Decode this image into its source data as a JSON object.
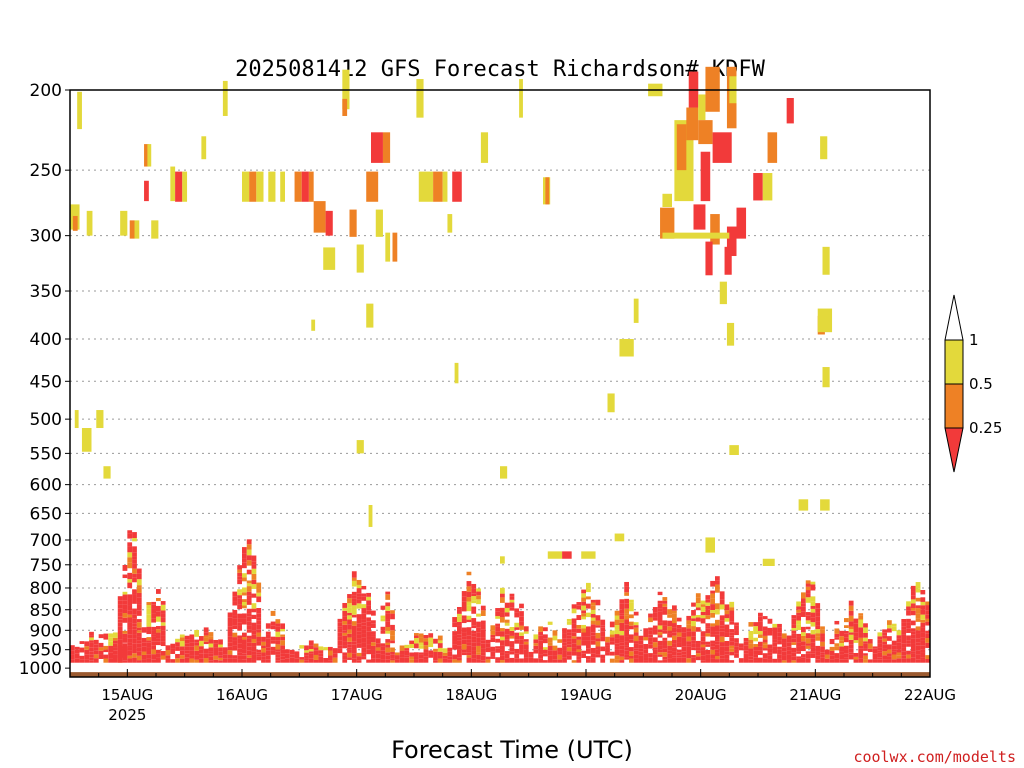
{
  "chart_data": {
    "type": "heatmap",
    "title": "2025081412 GFS Forecast Richardson# KDFW",
    "xlabel": "Forecast Time (UTC)",
    "ylabel": "",
    "y_levels": [
      200,
      250,
      300,
      350,
      400,
      450,
      500,
      550,
      600,
      650,
      700,
      750,
      800,
      850,
      900,
      950,
      1000
    ],
    "y_scale": "log-pressure",
    "y_range": [
      1025,
      200
    ],
    "x_range_hours": [
      0,
      180
    ],
    "x_ticks": [
      {
        "label": "15AUG",
        "hour": 12
      },
      {
        "label": "16AUG",
        "hour": 36
      },
      {
        "label": "17AUG",
        "hour": 60
      },
      {
        "label": "18AUG",
        "hour": 84
      },
      {
        "label": "19AUG",
        "hour": 108
      },
      {
        "label": "20AUG",
        "hour": 132
      },
      {
        "label": "21AUG",
        "hour": 156
      },
      {
        "label": "22AUG",
        "hour": 180
      }
    ],
    "x_sublabel": "2025",
    "grid": "dotted horizontal at pressure levels",
    "legend": {
      "placement": "right",
      "labels": [
        "1",
        "0.5",
        "0.25"
      ],
      "bins": [
        {
          "range": [
            0.5,
            1.0
          ],
          "color": "#e3d93b"
        },
        {
          "range": [
            0.25,
            0.5
          ],
          "color": "#ee8125"
        },
        {
          "range": [
            0,
            0.25
          ],
          "color": "#f23a3a"
        }
      ]
    },
    "ground_color": "#9a5a30",
    "colors": {
      "low": "#f23a3a",
      "mid": "#ee8125",
      "high": "#e3d93b"
    },
    "cells": [
      {
        "t": 1.5,
        "p": 212,
        "dt": 1,
        "dp": 22,
        "c": "high"
      },
      {
        "t": 0,
        "p": 285,
        "dt": 2,
        "dp": 20,
        "c": "high"
      },
      {
        "t": 0.6,
        "p": 290,
        "dt": 1,
        "dp": 12,
        "c": "mid"
      },
      {
        "t": 3.5,
        "p": 290,
        "dt": 1.2,
        "dp": 20,
        "c": "high"
      },
      {
        "t": 10.5,
        "p": 290,
        "dt": 1.5,
        "dp": 20,
        "c": "high"
      },
      {
        "t": 12.5,
        "p": 295,
        "dt": 1,
        "dp": 15,
        "c": "mid"
      },
      {
        "t": 13.5,
        "p": 295,
        "dt": 1,
        "dp": 15,
        "c": "high"
      },
      {
        "t": 15.5,
        "p": 240,
        "dt": 1,
        "dp": 15,
        "c": "mid"
      },
      {
        "t": 15.5,
        "p": 265,
        "dt": 1,
        "dp": 15,
        "c": "low"
      },
      {
        "t": 16.2,
        "p": 240,
        "dt": 0.8,
        "dp": 15,
        "c": "high"
      },
      {
        "t": 17,
        "p": 295,
        "dt": 1.5,
        "dp": 15,
        "c": "high"
      },
      {
        "t": 21,
        "p": 260,
        "dt": 1,
        "dp": 25,
        "c": "high"
      },
      {
        "t": 22,
        "p": 262,
        "dt": 1.5,
        "dp": 22,
        "c": "low"
      },
      {
        "t": 23.5,
        "p": 262,
        "dt": 1,
        "dp": 22,
        "c": "high"
      },
      {
        "t": 27.5,
        "p": 235,
        "dt": 1,
        "dp": 15,
        "c": "high"
      },
      {
        "t": 32,
        "p": 205,
        "dt": 1,
        "dp": 20,
        "c": "high"
      },
      {
        "t": 36,
        "p": 262,
        "dt": 1.5,
        "dp": 22,
        "c": "high"
      },
      {
        "t": 37.5,
        "p": 262,
        "dt": 1.5,
        "dp": 22,
        "c": "mid"
      },
      {
        "t": 39,
        "p": 262,
        "dt": 1.5,
        "dp": 22,
        "c": "high"
      },
      {
        "t": 41.5,
        "p": 262,
        "dt": 1.5,
        "dp": 22,
        "c": "high"
      },
      {
        "t": 44,
        "p": 262,
        "dt": 1,
        "dp": 22,
        "c": "high"
      },
      {
        "t": 47,
        "p": 262,
        "dt": 1.5,
        "dp": 22,
        "c": "mid"
      },
      {
        "t": 48.5,
        "p": 262,
        "dt": 1.5,
        "dp": 22,
        "c": "low"
      },
      {
        "t": 50,
        "p": 262,
        "dt": 1,
        "dp": 22,
        "c": "mid"
      },
      {
        "t": 51,
        "p": 285,
        "dt": 2.5,
        "dp": 25,
        "c": "mid"
      },
      {
        "t": 53.5,
        "p": 290,
        "dt": 1.5,
        "dp": 20,
        "c": "low"
      },
      {
        "t": 53,
        "p": 320,
        "dt": 2.5,
        "dp": 20,
        "c": "high"
      },
      {
        "t": 57,
        "p": 200,
        "dt": 1.5,
        "dp": 22,
        "c": "high"
      },
      {
        "t": 57,
        "p": 210,
        "dt": 1,
        "dp": 10,
        "c": "mid"
      },
      {
        "t": 58.5,
        "p": 290,
        "dt": 1.5,
        "dp": 22,
        "c": "mid"
      },
      {
        "t": 60,
        "p": 320,
        "dt": 1.5,
        "dp": 25,
        "c": "high"
      },
      {
        "t": 62,
        "p": 262,
        "dt": 2.5,
        "dp": 22,
        "c": "mid"
      },
      {
        "t": 63,
        "p": 235,
        "dt": 2.5,
        "dp": 20,
        "c": "low"
      },
      {
        "t": 65.5,
        "p": 235,
        "dt": 1.5,
        "dp": 20,
        "c": "mid"
      },
      {
        "t": 64,
        "p": 290,
        "dt": 1.5,
        "dp": 22,
        "c": "high"
      },
      {
        "t": 66,
        "p": 310,
        "dt": 1,
        "dp": 25,
        "c": "high"
      },
      {
        "t": 67.5,
        "p": 310,
        "dt": 1,
        "dp": 25,
        "c": "mid"
      },
      {
        "t": 72.5,
        "p": 205,
        "dt": 1.5,
        "dp": 22,
        "c": "high"
      },
      {
        "t": 73,
        "p": 262,
        "dt": 3,
        "dp": 22,
        "c": "high"
      },
      {
        "t": 76,
        "p": 262,
        "dt": 2,
        "dp": 22,
        "c": "mid"
      },
      {
        "t": 78,
        "p": 262,
        "dt": 1,
        "dp": 22,
        "c": "high"
      },
      {
        "t": 80,
        "p": 262,
        "dt": 2,
        "dp": 22,
        "c": "low"
      },
      {
        "t": 79,
        "p": 290,
        "dt": 1,
        "dp": 15,
        "c": "high"
      },
      {
        "t": 86,
        "p": 235,
        "dt": 1.5,
        "dp": 20,
        "c": "high"
      },
      {
        "t": 94,
        "p": 205,
        "dt": 0.8,
        "dp": 22,
        "c": "high"
      },
      {
        "t": 99,
        "p": 265,
        "dt": 1.5,
        "dp": 20,
        "c": "high"
      },
      {
        "t": 99.5,
        "p": 265,
        "dt": 0.8,
        "dp": 20,
        "c": "mid"
      },
      {
        "t": 121,
        "p": 200,
        "dt": 3,
        "dp": 7,
        "c": "high"
      },
      {
        "t": 124,
        "p": 272,
        "dt": 2,
        "dp": 10,
        "c": "high"
      },
      {
        "t": 123.5,
        "p": 290,
        "dt": 3,
        "dp": 25,
        "c": "mid"
      },
      {
        "t": 126.5,
        "p": 245,
        "dt": 4,
        "dp": 55,
        "c": "high"
      },
      {
        "t": 127,
        "p": 235,
        "dt": 2,
        "dp": 30,
        "c": "mid"
      },
      {
        "t": 129,
        "p": 220,
        "dt": 2.5,
        "dp": 20,
        "c": "mid"
      },
      {
        "t": 129.5,
        "p": 200,
        "dt": 2,
        "dp": 20,
        "c": "low"
      },
      {
        "t": 131.5,
        "p": 210,
        "dt": 1.5,
        "dp": 15,
        "c": "high"
      },
      {
        "t": 131.5,
        "p": 225,
        "dt": 3,
        "dp": 15,
        "c": "mid"
      },
      {
        "t": 133,
        "p": 200,
        "dt": 3,
        "dp": 25,
        "c": "mid"
      },
      {
        "t": 130.5,
        "p": 285,
        "dt": 2.5,
        "dp": 20,
        "c": "low"
      },
      {
        "t": 132,
        "p": 255,
        "dt": 2,
        "dp": 35,
        "c": "low"
      },
      {
        "t": 134.5,
        "p": 235,
        "dt": 4,
        "dp": 20,
        "c": "low"
      },
      {
        "t": 134,
        "p": 295,
        "dt": 2,
        "dp": 25,
        "c": "mid"
      },
      {
        "t": 137.5,
        "p": 205,
        "dt": 2,
        "dp": 35,
        "c": "mid"
      },
      {
        "t": 138,
        "p": 200,
        "dt": 1.5,
        "dp": 15,
        "c": "high"
      },
      {
        "t": 137.5,
        "p": 305,
        "dt": 2,
        "dp": 25,
        "c": "low"
      },
      {
        "t": 139.5,
        "p": 290,
        "dt": 2,
        "dp": 25,
        "c": "low"
      },
      {
        "t": 143,
        "p": 262,
        "dt": 2,
        "dp": 20,
        "c": "low"
      },
      {
        "t": 145,
        "p": 262,
        "dt": 2,
        "dp": 20,
        "c": "high"
      },
      {
        "t": 146,
        "p": 235,
        "dt": 2,
        "dp": 20,
        "c": "mid"
      },
      {
        "t": 150,
        "p": 212,
        "dt": 1.5,
        "dp": 15,
        "c": "low"
      },
      {
        "t": 157,
        "p": 235,
        "dt": 1.5,
        "dp": 15,
        "c": "high"
      },
      {
        "t": 124,
        "p": 300,
        "dt": 14,
        "dp": 5,
        "c": "high"
      },
      {
        "t": 133,
        "p": 320,
        "dt": 1.5,
        "dp": 30,
        "c": "low"
      },
      {
        "t": 137,
        "p": 322,
        "dt": 1.5,
        "dp": 25,
        "c": "low"
      },
      {
        "t": 136,
        "p": 352,
        "dt": 1.5,
        "dp": 22,
        "c": "high"
      },
      {
        "t": 137.5,
        "p": 395,
        "dt": 1.5,
        "dp": 25,
        "c": "high"
      },
      {
        "t": 157.5,
        "p": 322,
        "dt": 1.5,
        "dp": 25,
        "c": "high"
      },
      {
        "t": 156.5,
        "p": 385,
        "dt": 1.5,
        "dp": 20,
        "c": "mid"
      },
      {
        "t": 156.5,
        "p": 380,
        "dt": 3,
        "dp": 25,
        "c": "high"
      },
      {
        "t": 157.5,
        "p": 445,
        "dt": 1.5,
        "dp": 25,
        "c": "high"
      },
      {
        "t": 115,
        "p": 410,
        "dt": 3,
        "dp": 20,
        "c": "high"
      },
      {
        "t": 118,
        "p": 370,
        "dt": 1,
        "dp": 25,
        "c": "high"
      },
      {
        "t": 112.5,
        "p": 478,
        "dt": 1.5,
        "dp": 25,
        "c": "high"
      },
      {
        "t": 62,
        "p": 375,
        "dt": 1.5,
        "dp": 25,
        "c": "high"
      },
      {
        "t": 50.5,
        "p": 385,
        "dt": 0.8,
        "dp": 12,
        "c": "high"
      },
      {
        "t": 80.5,
        "p": 440,
        "dt": 0.8,
        "dp": 25,
        "c": "high"
      },
      {
        "t": 2.5,
        "p": 530,
        "dt": 2,
        "dp": 35,
        "c": "high"
      },
      {
        "t": 5.5,
        "p": 500,
        "dt": 1.5,
        "dp": 25,
        "c": "high"
      },
      {
        "t": 1,
        "p": 500,
        "dt": 0.8,
        "dp": 25,
        "c": "high"
      },
      {
        "t": 7,
        "p": 580,
        "dt": 1.5,
        "dp": 20,
        "c": "high"
      },
      {
        "t": 60,
        "p": 540,
        "dt": 1.5,
        "dp": 20,
        "c": "high"
      },
      {
        "t": 90,
        "p": 580,
        "dt": 1.5,
        "dp": 20,
        "c": "high"
      },
      {
        "t": 138,
        "p": 545,
        "dt": 2,
        "dp": 15,
        "c": "high"
      },
      {
        "t": 157,
        "p": 635,
        "dt": 2,
        "dp": 20,
        "c": "high"
      },
      {
        "t": 152.5,
        "p": 635,
        "dt": 2,
        "dp": 20,
        "c": "high"
      },
      {
        "t": 133,
        "p": 710,
        "dt": 2,
        "dp": 30,
        "c": "high"
      },
      {
        "t": 145,
        "p": 745,
        "dt": 2.5,
        "dp": 15,
        "c": "high"
      },
      {
        "t": 62.5,
        "p": 655,
        "dt": 0.8,
        "dp": 40,
        "c": "high"
      },
      {
        "t": 107,
        "p": 730,
        "dt": 3,
        "dp": 15,
        "c": "high"
      },
      {
        "t": 100,
        "p": 730,
        "dt": 3,
        "dp": 15,
        "c": "high"
      },
      {
        "t": 103,
        "p": 730,
        "dt": 2,
        "dp": 15,
        "c": "low"
      },
      {
        "t": 114,
        "p": 695,
        "dt": 2,
        "dp": 15,
        "c": "high"
      },
      {
        "t": 90,
        "p": 740,
        "dt": 1,
        "dp": 15,
        "c": "high"
      }
    ],
    "low_columns": [
      {
        "t0": 0,
        "t1": 12,
        "top": 900,
        "dense_top": 945
      },
      {
        "t0": 10,
        "t1": 15,
        "top": 650,
        "dense_top": 820
      },
      {
        "t0": 15,
        "t1": 20,
        "top": 770,
        "dense_top": 900
      },
      {
        "t0": 20,
        "t1": 33,
        "top": 900,
        "dense_top": 950
      },
      {
        "t0": 33,
        "t1": 40,
        "top": 700,
        "dense_top": 860
      },
      {
        "t0": 40,
        "t1": 45,
        "top": 840,
        "dense_top": 920
      },
      {
        "t0": 45,
        "t1": 56,
        "top": 930,
        "dense_top": 960
      },
      {
        "t0": 56,
        "t1": 64,
        "top": 760,
        "dense_top": 880
      },
      {
        "t0": 64,
        "t1": 68,
        "top": 780,
        "dense_top": 930
      },
      {
        "t0": 68,
        "t1": 80,
        "top": 900,
        "dense_top": 960
      },
      {
        "t0": 80,
        "t1": 87,
        "top": 760,
        "dense_top": 880
      },
      {
        "t0": 87,
        "t1": 96,
        "top": 780,
        "dense_top": 930
      },
      {
        "t0": 96,
        "t1": 103,
        "top": 870,
        "dense_top": 950
      },
      {
        "t0": 103,
        "t1": 112,
        "top": 780,
        "dense_top": 900
      },
      {
        "t0": 112,
        "t1": 120,
        "top": 790,
        "dense_top": 920
      },
      {
        "t0": 120,
        "t1": 128,
        "top": 800,
        "dense_top": 900
      },
      {
        "t0": 128,
        "t1": 140,
        "top": 780,
        "dense_top": 900
      },
      {
        "t0": 140,
        "t1": 150,
        "top": 850,
        "dense_top": 940
      },
      {
        "t0": 150,
        "t1": 158,
        "top": 770,
        "dense_top": 920
      },
      {
        "t0": 158,
        "t1": 168,
        "top": 830,
        "dense_top": 950
      },
      {
        "t0": 168,
        "t1": 174,
        "top": 870,
        "dense_top": 930
      },
      {
        "t0": 174,
        "t1": 180,
        "top": 775,
        "dense_top": 880
      }
    ]
  },
  "credit": "coolwx.com/modelts"
}
